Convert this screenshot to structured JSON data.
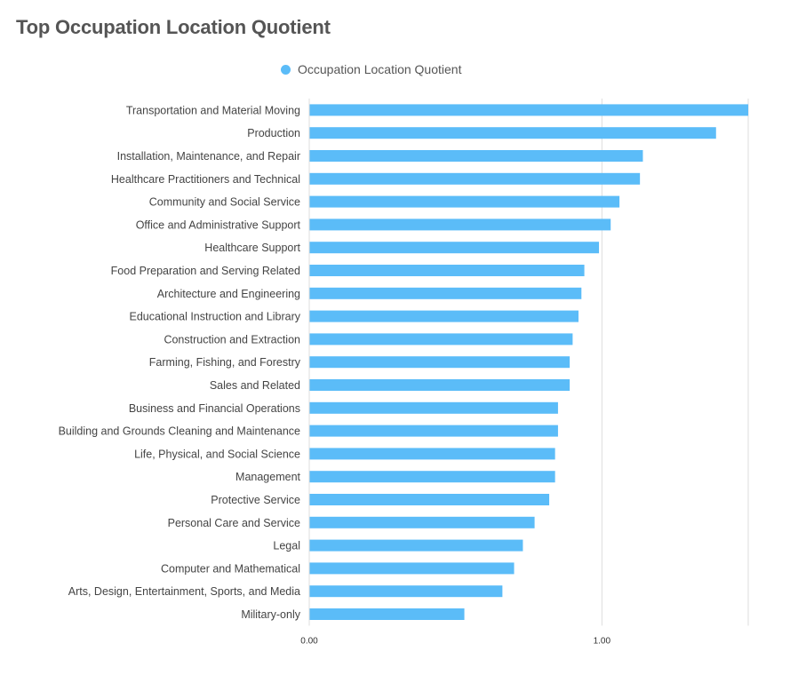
{
  "title": "Top Occupation Location Quotient",
  "colors": {
    "bar": "#5bbcf8",
    "grid": "#dddddd",
    "label": "#444444",
    "title": "#555555"
  },
  "chart_data": {
    "type": "bar",
    "orientation": "horizontal",
    "legend_position": "top-center",
    "grid": true,
    "xlim": [
      0,
      1.5
    ],
    "xticks": [
      0,
      1
    ],
    "xtick_labels": [
      "0.00",
      "1.00"
    ],
    "categories": [
      "Transportation and Material Moving",
      "Production",
      "Installation, Maintenance, and Repair",
      "Healthcare Practitioners and Technical",
      "Community and Social Service",
      "Office and Administrative Support",
      "Healthcare Support",
      "Food Preparation and Serving Related",
      "Architecture and Engineering",
      "Educational Instruction and Library",
      "Construction and Extraction",
      "Farming, Fishing, and Forestry",
      "Sales and Related",
      "Business and Financial Operations",
      "Building and Grounds Cleaning and Maintenance",
      "Life, Physical, and Social Science",
      "Management",
      "Protective Service",
      "Personal Care and Service",
      "Legal",
      "Computer and Mathematical",
      "Arts, Design, Entertainment, Sports, and Media",
      "Military-only"
    ],
    "series": [
      {
        "name": "Occupation Location Quotient",
        "values": [
          1.51,
          1.39,
          1.14,
          1.13,
          1.06,
          1.03,
          0.99,
          0.94,
          0.93,
          0.92,
          0.9,
          0.89,
          0.89,
          0.85,
          0.85,
          0.84,
          0.84,
          0.82,
          0.77,
          0.73,
          0.7,
          0.66,
          0.53
        ]
      }
    ]
  }
}
